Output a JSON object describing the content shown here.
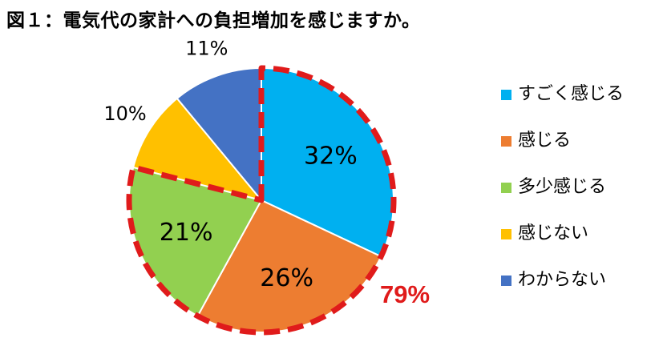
{
  "title": "図１：電気代の家計への負担増加を感じますか。",
  "chart_data": {
    "type": "pie",
    "title": "図１：電気代の家計への負担増加を感じますか。",
    "legend_position": "right",
    "slices": [
      {
        "name": "すごく感じる",
        "value": 32,
        "label": "32%",
        "color": "#00b0f0"
      },
      {
        "name": "感じる",
        "value": 26,
        "label": "26%",
        "color": "#ed7d31"
      },
      {
        "name": "多少感じる",
        "value": 21,
        "label": "21%",
        "color": "#92d050"
      },
      {
        "name": "感じない",
        "value": 10,
        "label": "10%",
        "color": "#ffc000"
      },
      {
        "name": "わからない",
        "value": 11,
        "label": "11%",
        "color": "#4472c4"
      }
    ],
    "highlight": {
      "label": "79%",
      "color": "#e01b1b",
      "slices": [
        "すごく感じる",
        "感じる",
        "多少感じる"
      ]
    }
  }
}
